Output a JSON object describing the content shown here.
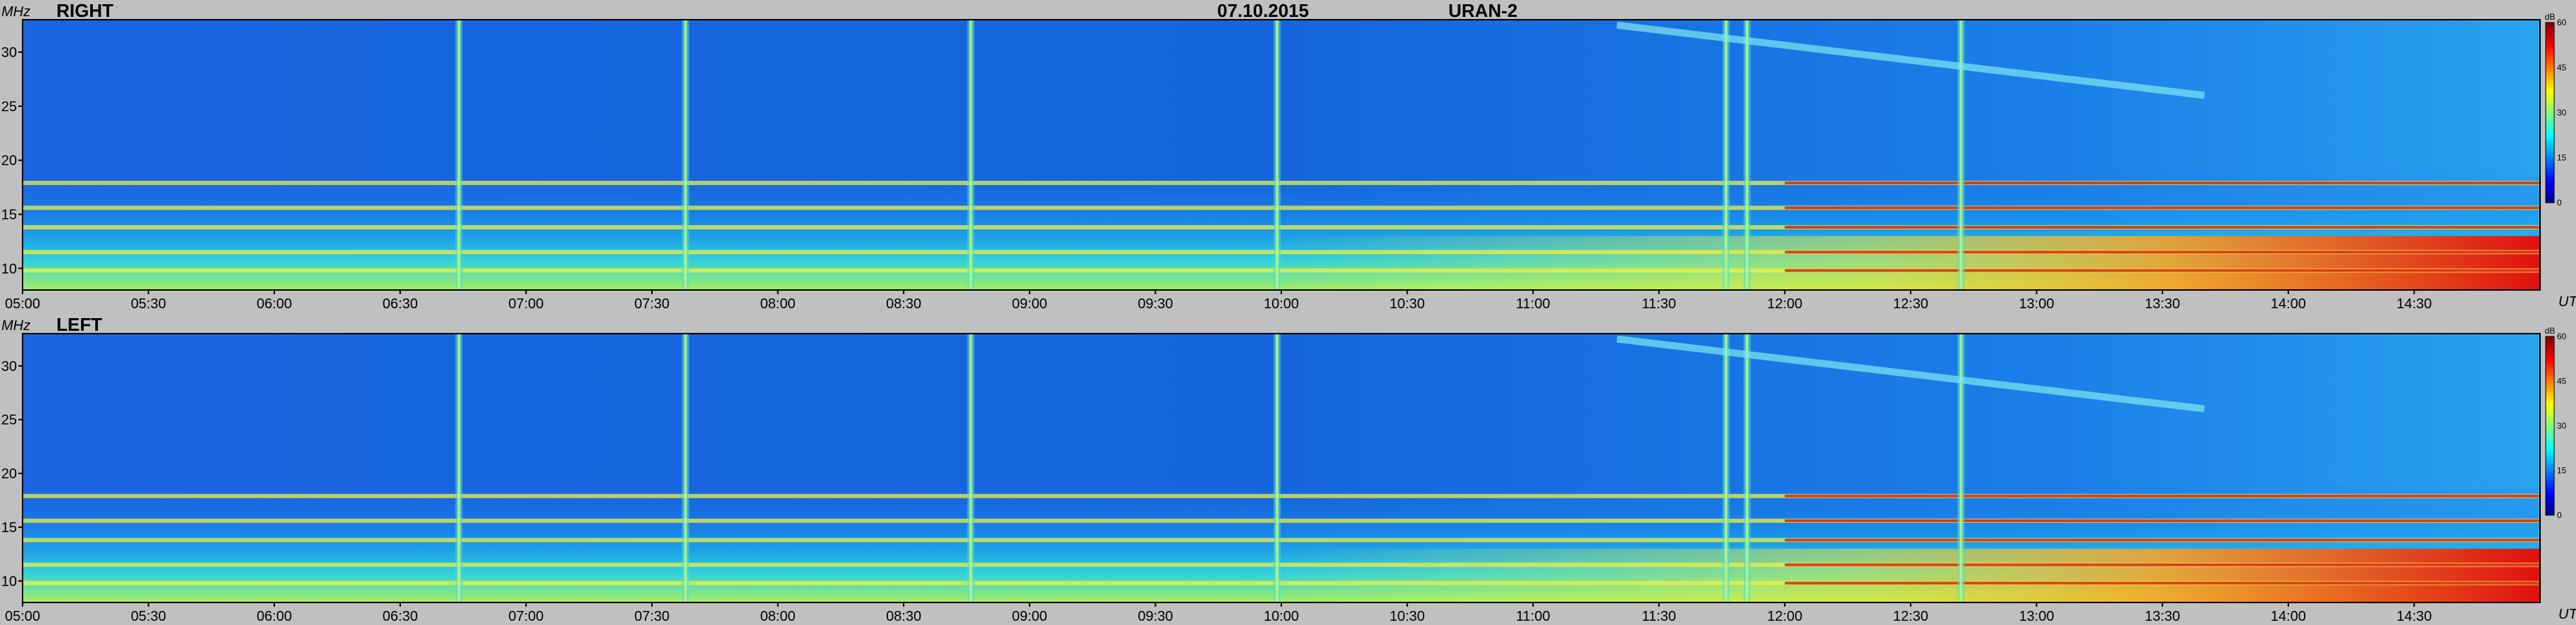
{
  "header": {
    "date": "07.10.2015",
    "instrument": "URAN-2"
  },
  "axis": {
    "freq_unit": "MHz",
    "time_unit": "UT"
  },
  "chart_data": [
    {
      "type": "heatmap",
      "panel_label": "RIGHT",
      "x_unit": "UT",
      "y_unit": "MHz",
      "xlim": [
        "05:00",
        "15:00"
      ],
      "ylim": [
        8,
        33
      ],
      "x_ticks": [
        "05:00",
        "05:30",
        "06:00",
        "06:30",
        "07:00",
        "07:30",
        "08:00",
        "08:30",
        "09:00",
        "09:30",
        "10:00",
        "10:30",
        "11:00",
        "11:30",
        "12:00",
        "12:30",
        "13:00",
        "13:30",
        "14:00",
        "14:30"
      ],
      "y_ticks": [
        10,
        15,
        20,
        25,
        30
      ],
      "colorbar": {
        "unit": "dB",
        "ticks": [
          0,
          15,
          30,
          45,
          60
        ],
        "min": 0,
        "max": 60,
        "colormap": "jet"
      },
      "horizontal_bands_mhz": [
        9.8,
        11.5,
        13.8,
        15.6,
        17.9
      ],
      "vertical_bursts_ut": [
        "06:44",
        "07:38",
        "08:46",
        "09:59",
        "11:46",
        "11:51",
        "12:42"
      ],
      "drifting_feature": {
        "start_ut": "11:20",
        "start_mhz": 32.5,
        "end_ut": "13:40",
        "end_mhz": 26
      }
    },
    {
      "type": "heatmap",
      "panel_label": "LEFT",
      "x_unit": "UT",
      "y_unit": "MHz",
      "xlim": [
        "05:00",
        "15:00"
      ],
      "ylim": [
        8,
        33
      ],
      "x_ticks": [
        "05:00",
        "05:30",
        "06:00",
        "06:30",
        "07:00",
        "07:30",
        "08:00",
        "08:30",
        "09:00",
        "09:30",
        "10:00",
        "10:30",
        "11:00",
        "11:30",
        "12:00",
        "12:30",
        "13:00",
        "13:30",
        "14:00",
        "14:30"
      ],
      "y_ticks": [
        10,
        15,
        20,
        25,
        30
      ],
      "colorbar": {
        "unit": "dB",
        "ticks": [
          0,
          15,
          30,
          45,
          60
        ],
        "min": 0,
        "max": 60,
        "colormap": "jet"
      },
      "horizontal_bands_mhz": [
        9.8,
        11.5,
        13.8,
        15.6,
        17.9
      ],
      "vertical_bursts_ut": [
        "06:44",
        "07:38",
        "08:46",
        "09:59",
        "11:46",
        "11:51",
        "12:42"
      ],
      "drifting_feature": {
        "start_ut": "11:20",
        "start_mhz": 32.5,
        "end_ut": "13:40",
        "end_mhz": 26
      }
    }
  ],
  "colors": {
    "background": "#c0c0c0",
    "frame": "#000000"
  }
}
